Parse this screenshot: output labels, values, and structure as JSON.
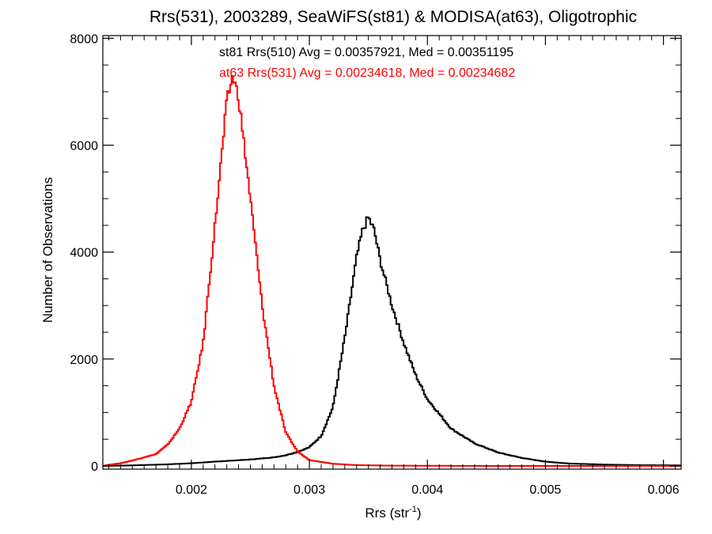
{
  "chart_data": {
    "type": "line",
    "step": true,
    "title": "Rrs(531), 2003289, SeaWiFS(st81) & MODISA(at63), Oligotrophic",
    "xlabel_main": "Rrs (str",
    "xlabel_sup": "-1",
    "xlabel_close": ")",
    "ylabel": "Number of Observations",
    "xlim": [
      0.00125,
      0.00615
    ],
    "ylim": [
      -60,
      8050
    ],
    "x_ticks": [
      0.002,
      0.003,
      0.004,
      0.005,
      0.006
    ],
    "x_tick_labels": [
      "0.002",
      "0.003",
      "0.004",
      "0.005",
      "0.006"
    ],
    "y_ticks": [
      0,
      2000,
      4000,
      6000,
      8000
    ],
    "y_tick_labels": [
      "0",
      "2000",
      "4000",
      "6000",
      "8000"
    ],
    "grid": false,
    "annotations": [
      {
        "text": "st81 Rrs(510) Avg = 0.00357921, Med = 0.00351195",
        "color": "#000000"
      },
      {
        "text": "at63 Rrs(531) Avg = 0.00234618, Med = 0.00234682",
        "color": "#ff0000"
      }
    ],
    "series": [
      {
        "color": "#000000",
        "points": [
          [
            0.00125,
            0
          ],
          [
            0.0015,
            10
          ],
          [
            0.0018,
            30
          ],
          [
            0.002,
            50
          ],
          [
            0.0022,
            80
          ],
          [
            0.0025,
            120
          ],
          [
            0.0027,
            160
          ],
          [
            0.0028,
            200
          ],
          [
            0.0029,
            260
          ],
          [
            0.003,
            350
          ],
          [
            0.0031,
            560
          ],
          [
            0.0032,
            1100
          ],
          [
            0.0033,
            2400
          ],
          [
            0.0034,
            3900
          ],
          [
            0.00345,
            4400
          ],
          [
            0.0035,
            4650
          ],
          [
            0.00355,
            4400
          ],
          [
            0.0036,
            3850
          ],
          [
            0.0037,
            3000
          ],
          [
            0.0038,
            2300
          ],
          [
            0.0039,
            1700
          ],
          [
            0.004,
            1250
          ],
          [
            0.0042,
            700
          ],
          [
            0.0044,
            420
          ],
          [
            0.0046,
            250
          ],
          [
            0.0048,
            150
          ],
          [
            0.005,
            80
          ],
          [
            0.0052,
            45
          ],
          [
            0.0055,
            25
          ],
          [
            0.0058,
            15
          ],
          [
            0.00615,
            10
          ]
        ]
      },
      {
        "color": "#ff0000",
        "points": [
          [
            0.00125,
            0
          ],
          [
            0.0013,
            20
          ],
          [
            0.0014,
            50
          ],
          [
            0.0015,
            100
          ],
          [
            0.0016,
            160
          ],
          [
            0.0017,
            220
          ],
          [
            0.0018,
            400
          ],
          [
            0.0019,
            700
          ],
          [
            0.002,
            1200
          ],
          [
            0.0021,
            2300
          ],
          [
            0.0022,
            4500
          ],
          [
            0.0023,
            6800
          ],
          [
            0.00235,
            7300
          ],
          [
            0.0024,
            6900
          ],
          [
            0.0025,
            5000
          ],
          [
            0.0026,
            3000
          ],
          [
            0.0027,
            1500
          ],
          [
            0.0028,
            620
          ],
          [
            0.0029,
            270
          ],
          [
            0.003,
            110
          ],
          [
            0.0032,
            40
          ],
          [
            0.0034,
            15
          ],
          [
            0.0037,
            5
          ],
          [
            0.0045,
            0
          ],
          [
            0.00615,
            0
          ]
        ]
      }
    ]
  }
}
